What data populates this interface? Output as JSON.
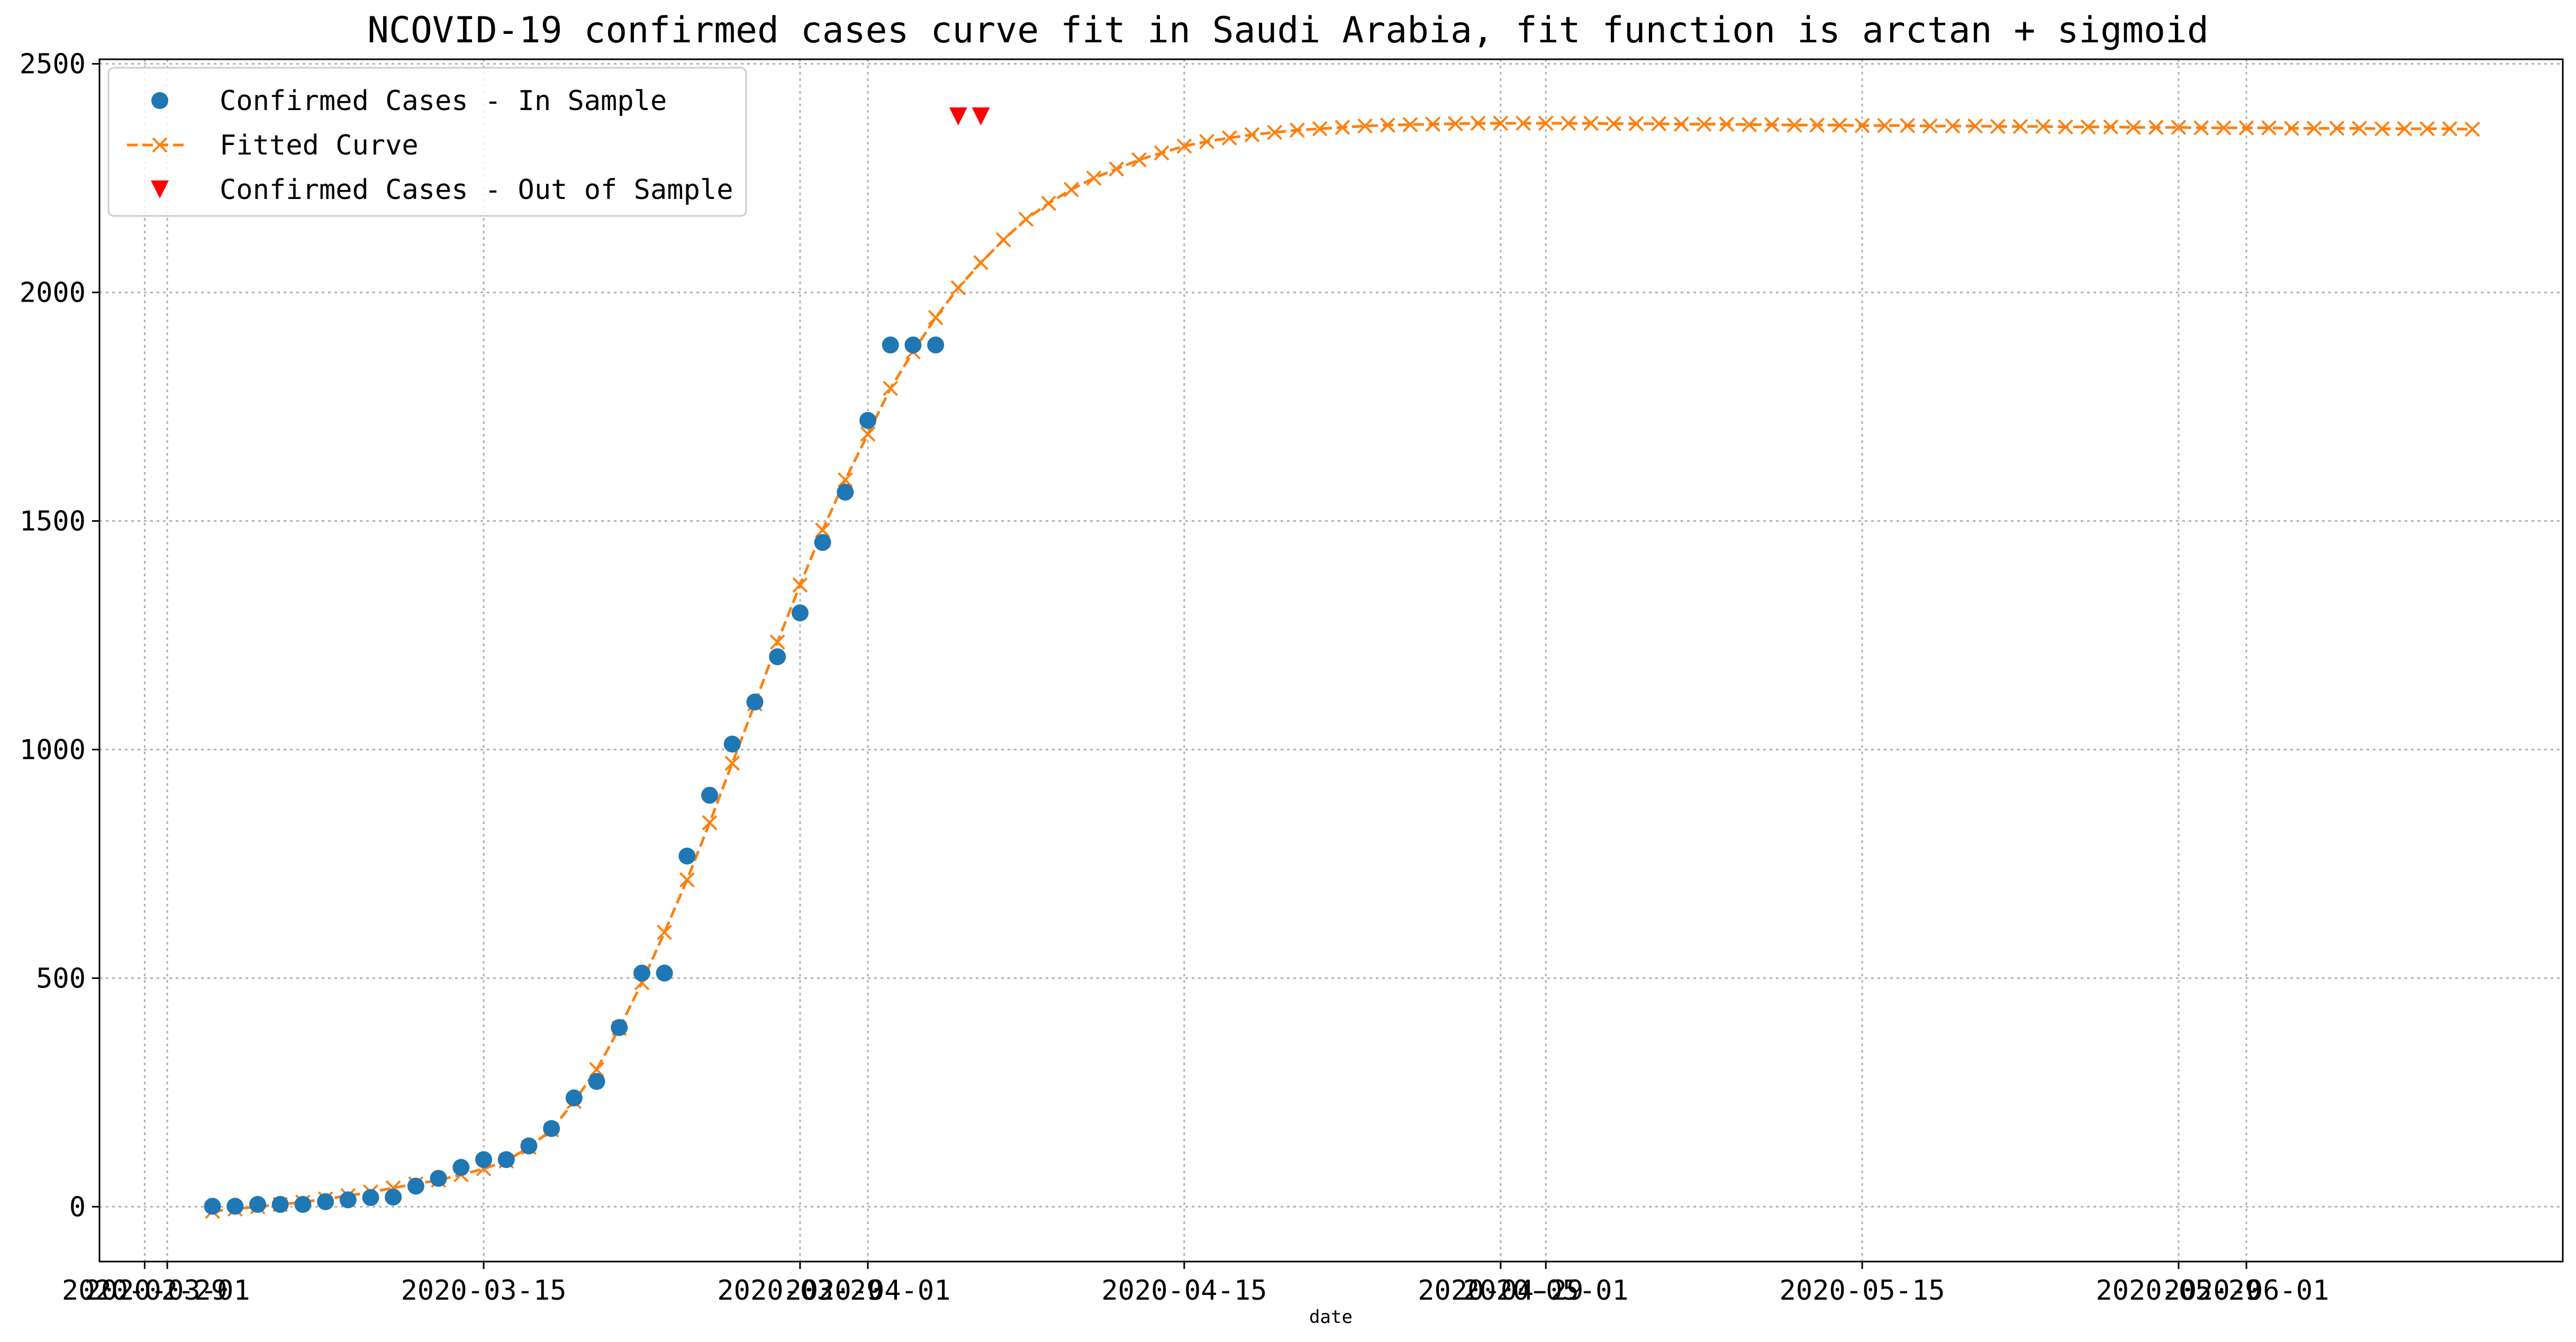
{
  "chart_data": {
    "type": "line",
    "title": "NCOVID-19 confirmed cases curve fit in Saudi Arabia, fit function is arctan + sigmoid",
    "xlabel": "date",
    "ylabel": "",
    "xlim": [
      "2020-02-27",
      "2020-06-15"
    ],
    "ylim": [
      -120,
      2510
    ],
    "grid": true,
    "legend_position": "top-left",
    "x_ticks": [
      "2020-02-29",
      "2020-03-01",
      "2020-03-15",
      "2020-03-29",
      "2020-04-01",
      "2020-04-15",
      "2020-04-29",
      "2020-05-01",
      "2020-05-15",
      "2020-05-29",
      "2020-06-01"
    ],
    "y_ticks": [
      0,
      500,
      1000,
      1500,
      2000,
      2500
    ],
    "series": [
      {
        "name": "Confirmed Cases - In Sample",
        "color": "#1f77b4",
        "marker": "circle",
        "line": "none",
        "start_date": "2020-03-03",
        "values": [
          1,
          1,
          5,
          5,
          5,
          11,
          15,
          20,
          21,
          45,
          62,
          86,
          103,
          103,
          133,
          171,
          238,
          274,
          392,
          511,
          511,
          767,
          900,
          1012,
          1104,
          1203,
          1299,
          1453,
          1563,
          1720,
          1885,
          1885,
          1885
        ]
      },
      {
        "name": "Fitted Curve",
        "color": "#ff7f0e",
        "marker": "x",
        "line": "dashed",
        "start_date": "2020-03-03",
        "values": [
          -10,
          -5,
          0,
          5,
          10,
          17,
          24,
          32,
          41,
          50,
          58,
          70,
          83,
          100,
          130,
          168,
          230,
          300,
          390,
          490,
          600,
          715,
          840,
          970,
          1100,
          1235,
          1360,
          1480,
          1590,
          1690,
          1790,
          1870,
          1945,
          2010,
          2065,
          2115,
          2160,
          2195,
          2225,
          2250,
          2270,
          2290,
          2305,
          2320,
          2330,
          2338,
          2345,
          2350,
          2355,
          2358,
          2361,
          2364,
          2366,
          2367,
          2368,
          2369,
          2370,
          2370,
          2370,
          2370,
          2370,
          2370,
          2369,
          2369,
          2369,
          2368,
          2368,
          2368,
          2367,
          2367,
          2366,
          2366,
          2366,
          2365,
          2365,
          2365,
          2364,
          2364,
          2364,
          2363,
          2363,
          2363,
          2362,
          2362,
          2362,
          2361,
          2361,
          2361,
          2360,
          2360,
          2360,
          2360,
          2359,
          2359,
          2359,
          2359,
          2358,
          2358,
          2358,
          2358,
          2357
        ]
      },
      {
        "name": "Confirmed Cases - Out of Sample",
        "color": "#ff0000",
        "marker": "triangle-down",
        "line": "none",
        "x": [
          "2020-04-05",
          "2020-04-06"
        ],
        "values": [
          2385,
          2385
        ]
      }
    ]
  }
}
